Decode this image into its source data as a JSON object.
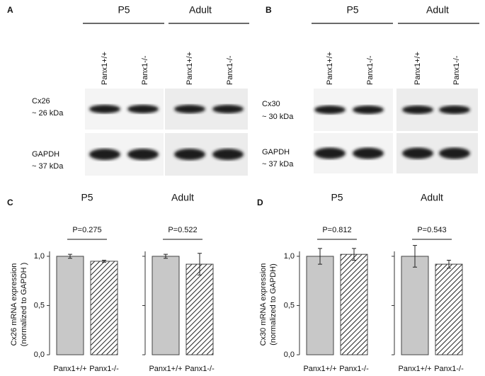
{
  "blots": [
    {
      "panel": "A",
      "groups": [
        "P5",
        "Adult"
      ],
      "lanes": [
        "Panx1+/+",
        "Panx1-/-",
        "Panx1+/+",
        "Panx1-/-"
      ],
      "rows": [
        {
          "protein": "Cx26",
          "size": "~ 26 kDa"
        },
        {
          "protein": "GAPDH",
          "size": "~ 37 kDa"
        }
      ]
    },
    {
      "panel": "B",
      "groups": [
        "P5",
        "Adult"
      ],
      "lanes": [
        "Panx1+/+",
        "Panx1-/-",
        "Panx1+/+",
        "Panx1-/-"
      ],
      "rows": [
        {
          "protein": "Cx30",
          "size": "~ 30 kDa"
        },
        {
          "protein": "GAPDH",
          "size": "~ 37 kDa"
        }
      ]
    }
  ],
  "panels": [
    {
      "label": "C",
      "ylabel": [
        "Cx26 mRNA expression",
        "(normalized to GAPDH )"
      ]
    },
    {
      "label": "D",
      "ylabel": [
        "Cx30 mRNA expression",
        "(normalized to GAPDH)"
      ]
    }
  ],
  "chart_data": [
    {
      "type": "bar",
      "title": "P5",
      "annotation": "P=0.275",
      "categories": [
        "Panx1+/+",
        "Panx1-/-"
      ],
      "values": [
        1.0,
        0.95
      ],
      "errors": [
        0.02,
        0.01
      ],
      "colors": [
        "#c8c8c8",
        "#ffffff"
      ],
      "hatch": [
        false,
        true
      ],
      "ylim": [
        0,
        1.05
      ],
      "yticks": [
        {
          "value": 0,
          "label": "0,0"
        },
        {
          "value": 0.5,
          "label": "0,5"
        },
        {
          "value": 1,
          "label": "1,0"
        }
      ]
    },
    {
      "type": "bar",
      "title": "Adult",
      "annotation": "P=0.522",
      "categories": [
        "Panx1+/+",
        "Panx1-/-"
      ],
      "values": [
        1.0,
        0.92
      ],
      "errors": [
        0.02,
        0.11
      ],
      "colors": [
        "#c8c8c8",
        "#ffffff"
      ],
      "hatch": [
        false,
        true
      ],
      "ylim": [
        0,
        1.05
      ],
      "yticks": [
        0,
        0.5,
        1
      ]
    },
    {
      "type": "bar",
      "title": "P5",
      "annotation": "P=0.812",
      "categories": [
        "Panx1+/+",
        "Panx1-/-"
      ],
      "values": [
        1.0,
        1.02
      ],
      "errors": [
        0.08,
        0.06
      ],
      "colors": [
        "#c8c8c8",
        "#ffffff"
      ],
      "hatch": [
        false,
        true
      ],
      "ylim": [
        0,
        1.05
      ],
      "yticks": [
        {
          "value": 0,
          "label": "0,0"
        },
        {
          "value": 0.5,
          "label": "0,5"
        },
        {
          "value": 1,
          "label": "1,0"
        }
      ]
    },
    {
      "type": "bar",
      "title": "Adult",
      "annotation": "P=0.543",
      "categories": [
        "Panx1+/+",
        "Panx1-/-"
      ],
      "values": [
        1.0,
        0.92
      ],
      "errors": [
        0.11,
        0.04
      ],
      "colors": [
        "#c8c8c8",
        "#ffffff"
      ],
      "hatch": [
        false,
        true
      ],
      "ylim": [
        0,
        1.05
      ],
      "yticks": [
        0,
        0.5,
        1
      ]
    }
  ]
}
